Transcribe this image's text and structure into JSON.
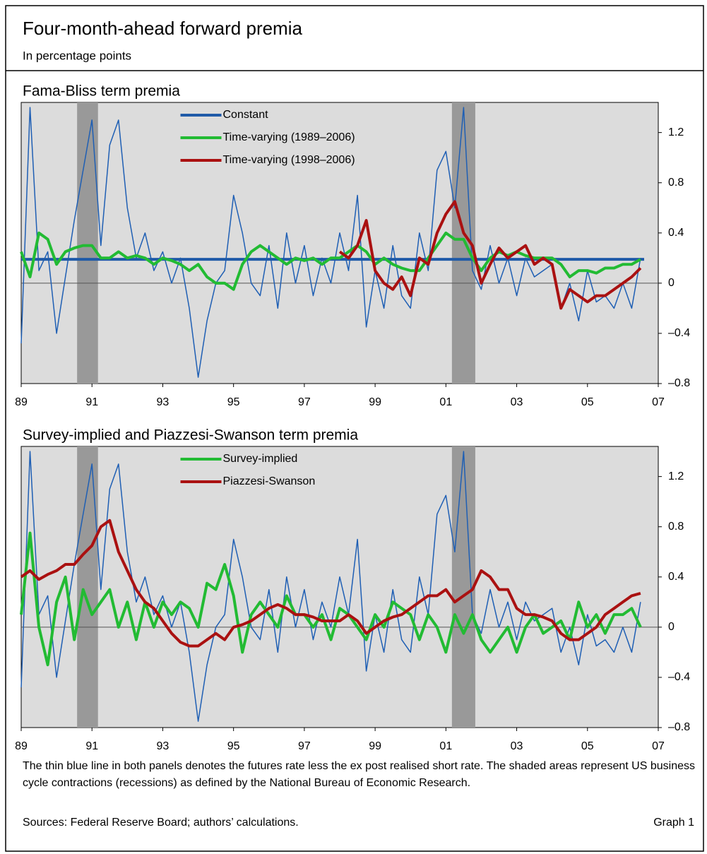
{
  "title": "Four-month-ahead forward premia",
  "subtitle": "In percentage points",
  "note": "The thin blue line in both panels denotes the futures rate less the ex post realised short rate. The shaded areas represent US business cycle contractions (recessions) as defined by the National Bureau of Economic Research.",
  "sources": "Sources: Federal Reserve Board; authors’ calculations.",
  "graph_label": "Graph 1",
  "chart_data": [
    {
      "type": "line",
      "title": "Fama-Bliss term premia",
      "legend": "upper center",
      "zero_line": true,
      "xlim": [
        1989,
        2007
      ],
      "xticks": [
        {
          "value": 1989,
          "label": "89"
        },
        {
          "value": 1991,
          "label": "91"
        },
        {
          "value": 1993,
          "label": "93"
        },
        {
          "value": 1995,
          "label": "95"
        },
        {
          "value": 1997,
          "label": "97"
        },
        {
          "value": 1999,
          "label": "99"
        },
        {
          "value": 2001,
          "label": "01"
        },
        {
          "value": 2003,
          "label": "03"
        },
        {
          "value": 2005,
          "label": "05"
        },
        {
          "value": 2007,
          "label": "07"
        }
      ],
      "ylim": [
        -0.8,
        1.44
      ],
      "yticks": [
        {
          "value": -0.8,
          "label": "–0.8"
        },
        {
          "value": -0.4,
          "label": "–0.4"
        },
        0,
        0.4,
        0.8,
        1.2
      ],
      "shaded": [
        [
          1990.58,
          1991.17
        ],
        [
          2001.17,
          2001.83
        ]
      ],
      "x": [
        1989,
        1989.25,
        1989.5,
        1989.75,
        1990,
        1990.25,
        1990.5,
        1990.75,
        1991,
        1991.25,
        1991.5,
        1991.75,
        1992,
        1992.25,
        1992.5,
        1992.75,
        1993,
        1993.25,
        1993.5,
        1993.75,
        1994,
        1994.25,
        1994.5,
        1994.75,
        1995,
        1995.25,
        1995.5,
        1995.75,
        1996,
        1996.25,
        1996.5,
        1996.75,
        1997,
        1997.25,
        1997.5,
        1997.75,
        1998,
        1998.25,
        1998.5,
        1998.75,
        1999,
        1999.25,
        1999.5,
        1999.75,
        2000,
        2000.25,
        2000.5,
        2000.75,
        2001,
        2001.25,
        2001.5,
        2001.75,
        2002,
        2002.25,
        2002.5,
        2002.75,
        2003,
        2003.25,
        2003.5,
        2003.75,
        2004,
        2004.25,
        2004.5,
        2004.75,
        2005,
        2005.25,
        2005.5,
        2005.75,
        2006,
        2006.25,
        2006.5
      ],
      "series": [
        {
          "color": "#1f5fb4",
          "width": 1.5,
          "values": [
            -0.48,
            1.4,
            0.1,
            0.25,
            -0.4,
            0.05,
            0.5,
            0.9,
            1.3,
            0.3,
            1.1,
            1.3,
            0.6,
            0.2,
            0.4,
            0.1,
            0.25,
            0.0,
            0.2,
            -0.2,
            -0.75,
            -0.3,
            0.0,
            0.1,
            0.7,
            0.4,
            0.0,
            -0.1,
            0.3,
            -0.2,
            0.4,
            0.0,
            0.3,
            -0.1,
            0.2,
            0.0,
            0.4,
            0.1,
            0.7,
            -0.35,
            0.1,
            -0.2,
            0.3,
            -0.1,
            -0.2,
            0.4,
            0.1,
            0.9,
            1.05,
            0.6,
            1.4,
            0.1,
            -0.05,
            0.3,
            0.0,
            0.2,
            -0.1,
            0.2,
            0.05,
            0.1,
            0.15,
            -0.2,
            0.0,
            -0.3,
            0.1,
            -0.15,
            -0.1,
            -0.2,
            0.0,
            -0.2,
            0.2
          ]
        },
        {
          "name": "Constant",
          "color": "#1f5aa8",
          "width": 4,
          "x": [
            1989,
            2006.6
          ],
          "values": [
            0.19,
            0.19
          ]
        },
        {
          "name": "Time-varying (1989–2006)",
          "color": "#22bb33",
          "width": 4,
          "values": [
            0.25,
            0.05,
            0.4,
            0.35,
            0.15,
            0.25,
            0.28,
            0.3,
            0.3,
            0.2,
            0.2,
            0.25,
            0.2,
            0.22,
            0.2,
            0.15,
            0.2,
            0.18,
            0.15,
            0.1,
            0.15,
            0.05,
            0.0,
            0.0,
            -0.05,
            0.15,
            0.25,
            0.3,
            0.25,
            0.2,
            0.15,
            0.2,
            0.18,
            0.2,
            0.15,
            0.2,
            0.2,
            0.25,
            0.3,
            0.25,
            0.15,
            0.2,
            0.15,
            0.12,
            0.1,
            0.1,
            0.2,
            0.3,
            0.4,
            0.35,
            0.35,
            0.2,
            0.1,
            0.2,
            0.25,
            0.22,
            0.25,
            0.22,
            0.2,
            0.2,
            0.2,
            0.15,
            0.05,
            0.1,
            0.1,
            0.08,
            0.12,
            0.12,
            0.15,
            0.15,
            0.19
          ]
        },
        {
          "name": "Time-varying (1998–2006)",
          "color": "#aa1111",
          "width": 4,
          "x": [
            1998,
            1998.25,
            1998.5,
            1998.75,
            1999,
            1999.25,
            1999.5,
            1999.75,
            2000,
            2000.25,
            2000.5,
            2000.75,
            2001,
            2001.25,
            2001.5,
            2001.75,
            2002,
            2002.25,
            2002.5,
            2002.75,
            2003,
            2003.25,
            2003.5,
            2003.75,
            2004,
            2004.25,
            2004.5,
            2004.75,
            2005,
            2005.25,
            2005.5,
            2005.75,
            2006,
            2006.25,
            2006.5
          ],
          "values": [
            0.25,
            0.2,
            0.3,
            0.5,
            0.1,
            0.0,
            -0.05,
            0.05,
            -0.1,
            0.2,
            0.15,
            0.4,
            0.55,
            0.65,
            0.4,
            0.3,
            0.0,
            0.15,
            0.28,
            0.2,
            0.25,
            0.3,
            0.15,
            0.2,
            0.15,
            -0.2,
            -0.05,
            -0.1,
            -0.15,
            -0.1,
            -0.1,
            -0.05,
            0.0,
            0.05,
            0.12
          ]
        }
      ]
    },
    {
      "type": "line",
      "title": "Survey-implied and Piazzesi-Swanson term premia",
      "legend": "upper center",
      "zero_line": true,
      "xlim": [
        1989,
        2007
      ],
      "xticks": [
        {
          "value": 1989,
          "label": "89"
        },
        {
          "value": 1991,
          "label": "91"
        },
        {
          "value": 1993,
          "label": "93"
        },
        {
          "value": 1995,
          "label": "95"
        },
        {
          "value": 1997,
          "label": "97"
        },
        {
          "value": 1999,
          "label": "99"
        },
        {
          "value": 2001,
          "label": "01"
        },
        {
          "value": 2003,
          "label": "03"
        },
        {
          "value": 2005,
          "label": "05"
        },
        {
          "value": 2007,
          "label": "07"
        }
      ],
      "ylim": [
        -0.8,
        1.44
      ],
      "yticks": [
        {
          "value": -0.8,
          "label": "–0.8"
        },
        {
          "value": -0.4,
          "label": "–0.4"
        },
        0,
        0.4,
        0.8,
        1.2
      ],
      "shaded": [
        [
          1990.58,
          1991.17
        ],
        [
          2001.17,
          2001.83
        ]
      ],
      "x": [
        1989,
        1989.25,
        1989.5,
        1989.75,
        1990,
        1990.25,
        1990.5,
        1990.75,
        1991,
        1991.25,
        1991.5,
        1991.75,
        1992,
        1992.25,
        1992.5,
        1992.75,
        1993,
        1993.25,
        1993.5,
        1993.75,
        1994,
        1994.25,
        1994.5,
        1994.75,
        1995,
        1995.25,
        1995.5,
        1995.75,
        1996,
        1996.25,
        1996.5,
        1996.75,
        1997,
        1997.25,
        1997.5,
        1997.75,
        1998,
        1998.25,
        1998.5,
        1998.75,
        1999,
        1999.25,
        1999.5,
        1999.75,
        2000,
        2000.25,
        2000.5,
        2000.75,
        2001,
        2001.25,
        2001.5,
        2001.75,
        2002,
        2002.25,
        2002.5,
        2002.75,
        2003,
        2003.25,
        2003.5,
        2003.75,
        2004,
        2004.25,
        2004.5,
        2004.75,
        2005,
        2005.25,
        2005.5,
        2005.75,
        2006,
        2006.25,
        2006.5
      ],
      "series": [
        {
          "color": "#1f5fb4",
          "width": 1.5,
          "values": [
            -0.48,
            1.4,
            0.1,
            0.25,
            -0.4,
            0.05,
            0.5,
            0.9,
            1.3,
            0.3,
            1.1,
            1.3,
            0.6,
            0.2,
            0.4,
            0.1,
            0.25,
            0.0,
            0.2,
            -0.2,
            -0.75,
            -0.3,
            0.0,
            0.1,
            0.7,
            0.4,
            0.0,
            -0.1,
            0.3,
            -0.2,
            0.4,
            0.0,
            0.3,
            -0.1,
            0.2,
            0.0,
            0.4,
            0.1,
            0.7,
            -0.35,
            0.1,
            -0.2,
            0.3,
            -0.1,
            -0.2,
            0.4,
            0.1,
            0.9,
            1.05,
            0.6,
            1.4,
            0.1,
            -0.05,
            0.3,
            0.0,
            0.2,
            -0.1,
            0.2,
            0.05,
            0.1,
            0.15,
            -0.2,
            0.0,
            -0.3,
            0.1,
            -0.15,
            -0.1,
            -0.2,
            0.0,
            -0.2,
            0.2
          ]
        },
        {
          "name": "Survey-implied",
          "color": "#22bb33",
          "width": 4,
          "values": [
            0.1,
            0.75,
            0.0,
            -0.3,
            0.2,
            0.4,
            -0.1,
            0.3,
            0.1,
            0.2,
            0.3,
            0.0,
            0.2,
            -0.1,
            0.2,
            0.0,
            0.2,
            0.1,
            0.2,
            0.15,
            0.0,
            0.35,
            0.3,
            0.5,
            0.25,
            -0.2,
            0.1,
            0.2,
            0.1,
            0.0,
            0.25,
            0.1,
            0.1,
            0.0,
            0.1,
            -0.1,
            0.15,
            0.1,
            0.0,
            -0.1,
            0.1,
            0.0,
            0.2,
            0.15,
            0.1,
            -0.1,
            0.1,
            0.0,
            -0.2,
            0.1,
            -0.05,
            0.1,
            -0.1,
            -0.2,
            -0.1,
            0.0,
            -0.2,
            0.0,
            0.1,
            -0.05,
            0.0,
            0.05,
            -0.1,
            0.2,
            0.0,
            0.1,
            -0.05,
            0.1,
            0.1,
            0.15,
            0.0
          ]
        },
        {
          "name": "Piazzesi-Swanson",
          "color": "#aa1111",
          "width": 4,
          "values": [
            0.4,
            0.45,
            0.38,
            0.42,
            0.45,
            0.5,
            0.5,
            0.58,
            0.65,
            0.8,
            0.85,
            0.6,
            0.45,
            0.3,
            0.2,
            0.15,
            0.05,
            -0.05,
            -0.12,
            -0.15,
            -0.15,
            -0.1,
            -0.05,
            -0.1,
            0.0,
            0.02,
            0.05,
            0.1,
            0.15,
            0.18,
            0.15,
            0.1,
            0.1,
            0.08,
            0.05,
            0.05,
            0.05,
            0.1,
            0.05,
            -0.05,
            0.0,
            0.05,
            0.08,
            0.1,
            0.15,
            0.2,
            0.25,
            0.25,
            0.3,
            0.2,
            0.25,
            0.3,
            0.45,
            0.4,
            0.3,
            0.3,
            0.15,
            0.1,
            0.1,
            0.08,
            0.05,
            -0.05,
            -0.1,
            -0.1,
            -0.05,
            0.0,
            0.1,
            0.15,
            0.2,
            0.25,
            0.27
          ]
        }
      ]
    }
  ]
}
